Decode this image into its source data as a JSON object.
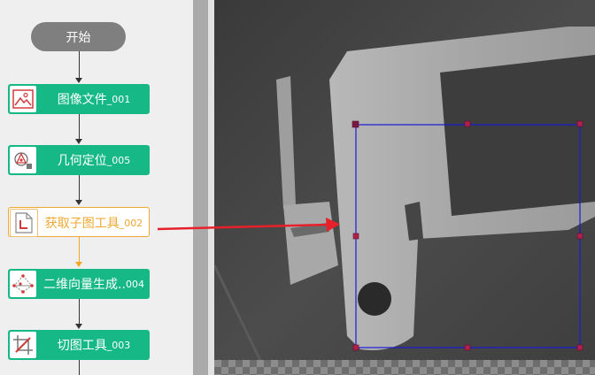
{
  "flow": {
    "start_label": "开始",
    "nodes": [
      {
        "name": "图像文件",
        "num": "_001",
        "icon": "image-file-icon",
        "state": "normal"
      },
      {
        "name": "几何定位",
        "num": "_005",
        "icon": "geometric-locate-icon",
        "state": "normal"
      },
      {
        "name": "获取子图工具",
        "num": "_002",
        "icon": "sub-image-icon",
        "state": "selected"
      },
      {
        "name": "二维向量生成..",
        "num": "004",
        "icon": "vector-icon",
        "state": "normal"
      },
      {
        "name": "切图工具",
        "num": "_003",
        "icon": "crop-tool-icon",
        "state": "normal"
      }
    ]
  },
  "colors": {
    "node_green": "#16b985",
    "start_grey": "#7f7f7f",
    "selected_orange": "#f0a830",
    "roi_blue": "#1a1ad6",
    "roi_handle": "#b0204a",
    "annotation_arrow": "#e8202a"
  }
}
